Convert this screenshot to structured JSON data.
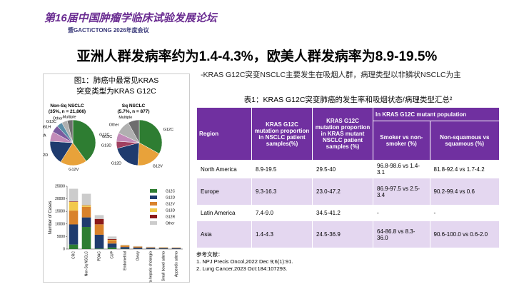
{
  "header": {
    "logo_line1": "第16届中国肿瘤学临床试验发展论坛",
    "logo_line2": "暨GACT/CTONG 2026年度会议"
  },
  "title": "亚洲人群发病率约为1.4-4.3%，欧美人群发病率为8.9-19.5%",
  "subtitle": "-KRAS G12C突变NSCLC主要发生在吸烟人群，病理类型以非鳞状NSCLC为主",
  "figure": {
    "caption": [
      "图1：肺癌中最常见KRAS",
      "突变类型为KRAS G12C"
    ],
    "pies": [
      {
        "type": "pie",
        "title": [
          "Non-Sq NSCLC",
          "(35%, n = 21,866)"
        ],
        "categories": [
          "G12C",
          "G12V",
          "G12D",
          "G12A",
          "Q61H",
          "G13C",
          "Other",
          "Multiple"
        ],
        "values": [
          40,
          19,
          17,
          7,
          5,
          4,
          4,
          4
        ],
        "colors": [
          "#2e7d32",
          "#e8a23a",
          "#1f3b6e",
          "#c28bb8",
          "#7a5a9e",
          "#5b8fa8",
          "#b0b0b0",
          "#6e6e6e"
        ]
      },
      {
        "type": "pie",
        "title": [
          "Sq NSCLC",
          "(5.7%, n = 877)"
        ],
        "categories": [
          "G12C",
          "G12V",
          "G12D",
          "G13D",
          "G13C",
          "Other",
          "Multiple"
        ],
        "values": [
          33,
          18,
          20,
          5,
          6,
          10,
          8
        ],
        "colors": [
          "#2e7d32",
          "#e8a23a",
          "#1f3b6e",
          "#a04060",
          "#c28bb8",
          "#b0b0b0",
          "#6e6e6e"
        ]
      }
    ],
    "bar_chart": {
      "type": "bar",
      "stacked": true,
      "ylabel": "Number of Cases",
      "categories": [
        "CRC",
        "Non-Sq NSCLC",
        "PDAC",
        "CUP",
        "Endometrial",
        "Ovary",
        "Intra-hepatic cholangio",
        "Small bowel adeno",
        "Appendix adeno"
      ],
      "series": [
        {
          "name": "G12C",
          "color": "#2e7d32",
          "values": [
            1800,
            8800,
            200,
            600,
            100,
            50,
            50,
            50,
            30
          ]
        },
        {
          "name": "G12D",
          "color": "#1f3b6e",
          "values": [
            8000,
            3800,
            5500,
            1600,
            700,
            500,
            400,
            300,
            300
          ]
        },
        {
          "name": "G12V",
          "color": "#d9822b",
          "values": [
            5500,
            4200,
            4000,
            1300,
            500,
            400,
            200,
            200,
            200
          ]
        },
        {
          "name": "G13D",
          "color": "#f2c94c",
          "values": [
            3500,
            600,
            100,
            200,
            200,
            50,
            50,
            100,
            50
          ]
        },
        {
          "name": "G12R",
          "color": "#8b1a1a",
          "values": [
            200,
            100,
            2200,
            300,
            50,
            50,
            50,
            20,
            20
          ]
        },
        {
          "name": "Other",
          "color": "#cccccc",
          "values": [
            5000,
            4500,
            1500,
            1000,
            150,
            150,
            150,
            130,
            100
          ]
        }
      ],
      "ylim": [
        0,
        25000
      ],
      "yticks": [
        0,
        5000,
        10000,
        15000,
        20000,
        25000
      ]
    }
  },
  "table": {
    "caption": "表1：KRAS G12C突变肺癌的发生率和吸烟状态/病理类型汇总²",
    "header": [
      [
        "Region",
        "KRAS G12C mutation proportion in NSCLC patient samples(%)",
        "KRAS G12C mutation proportion in KRAS mutant NSCLC patient samples (%)",
        "In KRAS G12C mutant population"
      ],
      [
        "Smoker vs non-smoker (%)",
        "Non-squamous vs squamous (%)"
      ]
    ],
    "rows": [
      [
        "North America",
        "8.9-19.5",
        "29.5-40",
        "96.8-98.6 vs 1.4-3.1",
        "81.8-92.4 vs 1.7-4.2"
      ],
      [
        "Europe",
        "9.3-16.3",
        "23.0-47.2",
        "86.9-97.5 vs 2.5-3.4",
        "90.2-99.4 vs 0.6"
      ],
      [
        "Latin America",
        "7.4-9.0",
        "34.5-41.2",
        "-",
        "-"
      ],
      [
        "Asia",
        "1.4-4.3",
        "24.5-36.9",
        "64-86.8 vs 8.3-36.0",
        "90.6-100.0 vs 0.6-2.0"
      ]
    ]
  },
  "references": {
    "heading": "参考文献：",
    "items": [
      "1. NPJ Precis Oncol,2022 Dec 9;6(1):91.",
      "2. Lung Cancer,2023 Oct:184:107293."
    ]
  }
}
